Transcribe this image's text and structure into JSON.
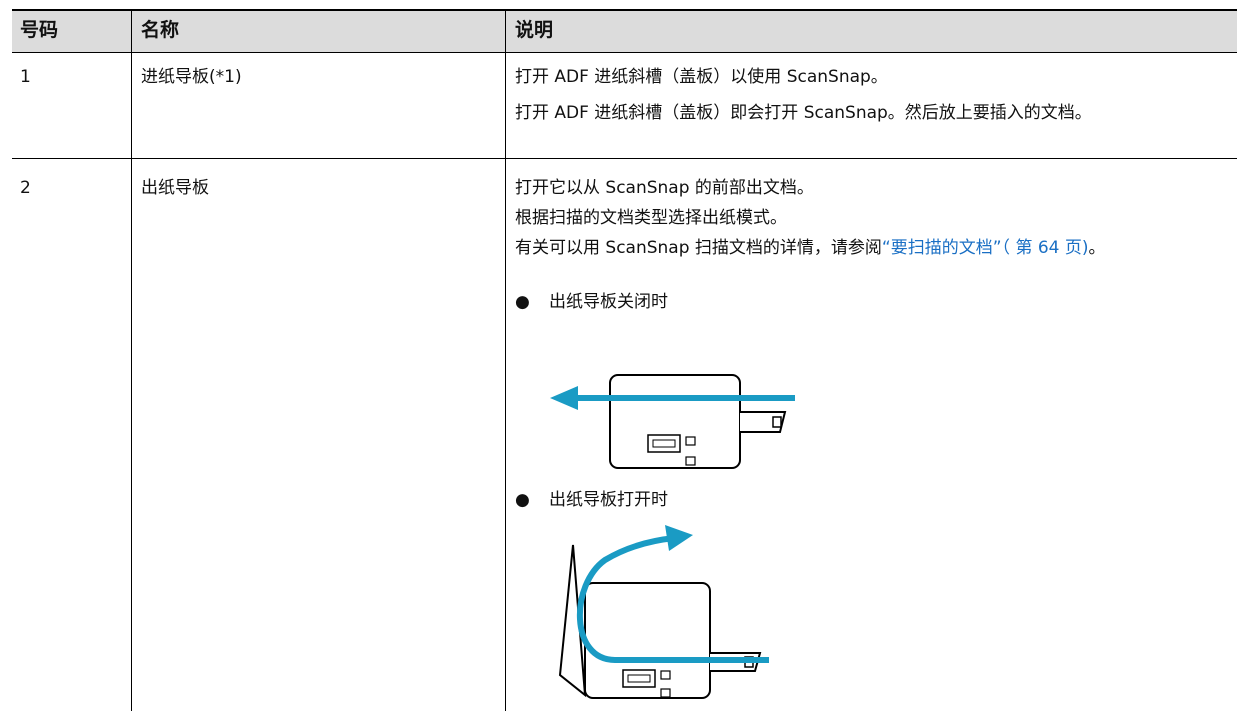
{
  "table": {
    "headers": [
      "号码",
      "名称",
      "说明"
    ],
    "rows": [
      {
        "number": "1",
        "name": "进纸导板(*1)",
        "description": [
          "打开 ADF 进纸斜槽（盖板）以使用 ScanSnap。",
          "打开 ADF 进纸斜槽（盖板）即会打开 ScanSnap。然后放上要插入的文档。"
        ]
      },
      {
        "number": "2",
        "name": "出纸导板",
        "description": [
          "打开它以从 ScanSnap 的前部出文档。",
          "根据扫描的文档类型选择出纸模式。"
        ],
        "reference": {
          "text": "有关可以用 ScanSnap 扫描文档的详情，请参阅",
          "link": "“要扫描的文档”（ 第 64 页)",
          "end": "。"
        },
        "bullets": [
          "出纸导板关闭时",
          "出纸导板打开时"
        ]
      }
    ]
  }
}
